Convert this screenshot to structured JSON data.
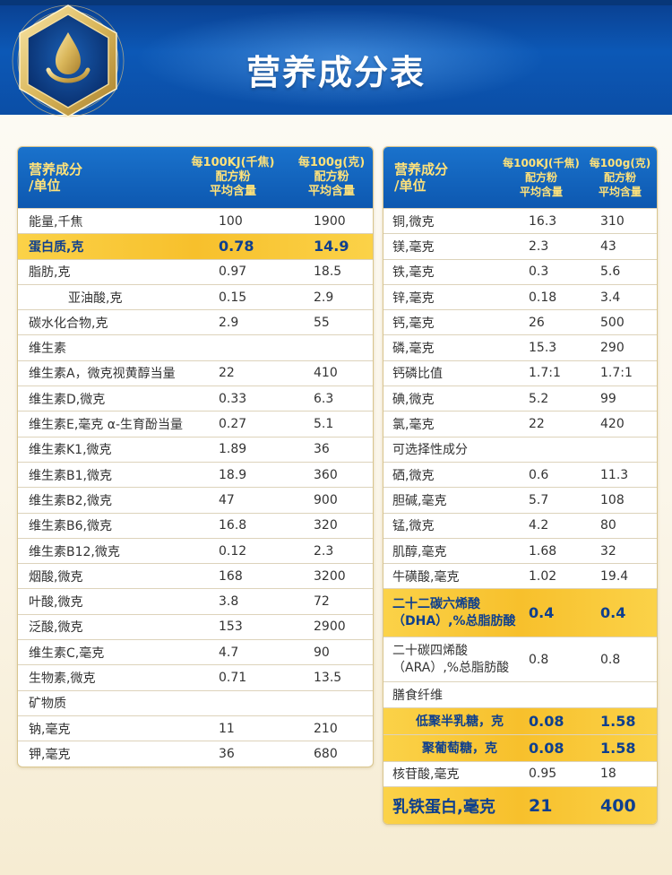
{
  "title": "营养成分表",
  "colors": {
    "header_blue": "#0c58b6",
    "highlight_gold": "#f7c02c",
    "head_text": "#ffe27a",
    "highlight_text": "#0e3f8e"
  },
  "emblem": {
    "icon": "oil-drop-hand-icon"
  },
  "left_table": {
    "header": {
      "col1": [
        "营养成分",
        "/单位"
      ],
      "col2": [
        "每100KJ(千焦)",
        "配方粉",
        "平均含量"
      ],
      "col3": [
        "每100g(克)",
        "配方粉",
        "平均含量"
      ]
    },
    "rows": [
      {
        "label": "能量,千焦",
        "v1": "100",
        "v2": "1900"
      },
      {
        "label": "蛋白质,克",
        "v1": "0.78",
        "v2": "14.9"
      },
      {
        "label": "脂肪,克",
        "v1": "0.97",
        "v2": "18.5"
      },
      {
        "label": "亚油酸,克",
        "v1": "0.15",
        "v2": "2.9"
      },
      {
        "label": "碳水化合物,克",
        "v1": "2.9",
        "v2": "55"
      },
      {
        "label": "维生素",
        "v1": "",
        "v2": ""
      },
      {
        "label": "维生素A，微克视黄醇当量",
        "v1": "22",
        "v2": "410"
      },
      {
        "label": "维生素D,微克",
        "v1": "0.33",
        "v2": "6.3"
      },
      {
        "label": "维生素E,毫克 α-生育酚当量",
        "v1": "0.27",
        "v2": "5.1"
      },
      {
        "label": "维生素K1,微克",
        "v1": "1.89",
        "v2": "36"
      },
      {
        "label": "维生素B1,微克",
        "v1": "18.9",
        "v2": "360"
      },
      {
        "label": "维生素B2,微克",
        "v1": "47",
        "v2": "900"
      },
      {
        "label": "维生素B6,微克",
        "v1": "16.8",
        "v2": "320"
      },
      {
        "label": "维生素B12,微克",
        "v1": "0.12",
        "v2": "2.3"
      },
      {
        "label": "烟酸,微克",
        "v1": "168",
        "v2": "3200"
      },
      {
        "label": "叶酸,微克",
        "v1": "3.8",
        "v2": "72"
      },
      {
        "label": "泛酸,微克",
        "v1": "153",
        "v2": "2900"
      },
      {
        "label": "维生素C,毫克",
        "v1": "4.7",
        "v2": "90"
      },
      {
        "label": "生物素,微克",
        "v1": "0.71",
        "v2": "13.5"
      },
      {
        "label": "矿物质",
        "v1": "",
        "v2": ""
      },
      {
        "label": "钠,毫克",
        "v1": "11",
        "v2": "210"
      },
      {
        "label": "钾,毫克",
        "v1": "36",
        "v2": "680"
      }
    ]
  },
  "right_table": {
    "header": {
      "col1": [
        "营养成分",
        "/单位"
      ],
      "col2": [
        "每100KJ(千焦)",
        "配方粉",
        "平均含量"
      ],
      "col3": [
        "每100g(克)",
        "配方粉",
        "平均含量"
      ]
    },
    "rows": [
      {
        "label": "铜,微克",
        "v1": "16.3",
        "v2": "310"
      },
      {
        "label": "镁,毫克",
        "v1": "2.3",
        "v2": "43"
      },
      {
        "label": "铁,毫克",
        "v1": "0.3",
        "v2": "5.6"
      },
      {
        "label": "锌,毫克",
        "v1": "0.18",
        "v2": "3.4"
      },
      {
        "label": "钙,毫克",
        "v1": "26",
        "v2": "500"
      },
      {
        "label": "磷,毫克",
        "v1": "15.3",
        "v2": "290"
      },
      {
        "label": "钙磷比值",
        "v1": "1.7:1",
        "v2": "1.7:1"
      },
      {
        "label": "碘,微克",
        "v1": "5.2",
        "v2": "99"
      },
      {
        "label": "氯,毫克",
        "v1": "22",
        "v2": "420"
      },
      {
        "label": "可选择性成分",
        "v1": "",
        "v2": ""
      },
      {
        "label": "硒,微克",
        "v1": "0.6",
        "v2": "11.3"
      },
      {
        "label": "胆碱,毫克",
        "v1": "5.7",
        "v2": "108"
      },
      {
        "label": "锰,微克",
        "v1": "4.2",
        "v2": "80"
      },
      {
        "label": "肌醇,毫克",
        "v1": "1.68",
        "v2": "32"
      },
      {
        "label": "牛磺酸,毫克",
        "v1": "1.02",
        "v2": "19.4"
      },
      {
        "label": "二十二碳六烯酸（DHA）,%总脂肪酸",
        "v1": "0.4",
        "v2": "0.4"
      },
      {
        "label": "二十碳四烯酸（ARA）,%总脂肪酸",
        "v1": "0.8",
        "v2": "0.8"
      },
      {
        "label": "膳食纤维",
        "v1": "",
        "v2": ""
      },
      {
        "label": "低聚半乳糖，克",
        "v1": "0.08",
        "v2": "1.58"
      },
      {
        "label": "聚葡萄糖，克",
        "v1": "0.08",
        "v2": "1.58"
      },
      {
        "label": "核苷酸,毫克",
        "v1": "0.95",
        "v2": "18"
      },
      {
        "label": "乳铁蛋白,毫克",
        "v1": "21",
        "v2": "400"
      }
    ]
  }
}
